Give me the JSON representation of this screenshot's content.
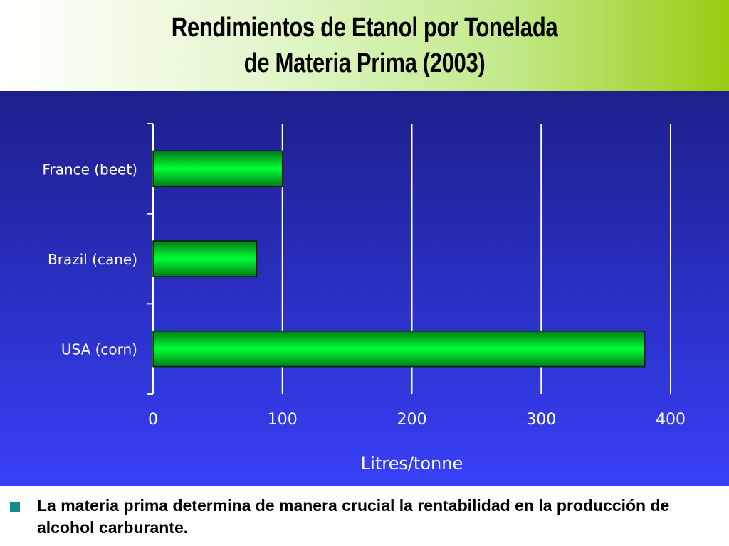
{
  "slide": {
    "title_line1": "Rendimientos de Etanol por Tonelada",
    "title_line2": "de Materia Prima (2003)",
    "bullet_text": "La materia prima determina de manera crucial la rentabilidad en la producción de alcohol carburante."
  },
  "chart_data": {
    "type": "bar",
    "orientation": "horizontal",
    "categories": [
      "France (beet)",
      "Brazil (cane)",
      "USA (corn)"
    ],
    "values": [
      100,
      80,
      380
    ],
    "xlabel": "Litres/tonne",
    "ylabel": "",
    "xlim": [
      0,
      400
    ],
    "xticks": [
      0,
      100,
      200,
      300,
      400
    ],
    "grid": "vertical",
    "bar_color": "#00e62e",
    "axis_text_color": "#ffffff"
  }
}
